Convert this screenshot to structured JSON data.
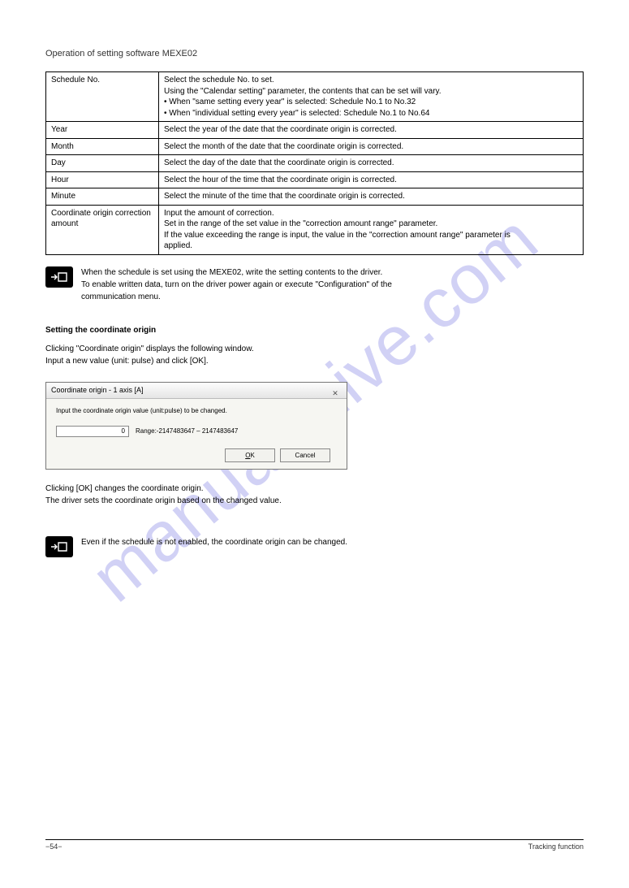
{
  "headerLine": "Operation of setting software MEXE02",
  "table": {
    "rows": [
      {
        "col1": "Schedule No.",
        "col2": "Select the schedule No. to set.\nUsing the \"Calendar setting\" parameter, the contents that can be set will vary.\n• When \"same setting every year\" is selected: Schedule No.1 to No.32\n• When \"individual setting every year\" is selected: Schedule No.1 to No.64"
      },
      {
        "col1": "Year",
        "col2": "Select the year of the date that the coordinate origin is corrected."
      },
      {
        "col1": "Month",
        "col2": "Select the month of the date that the coordinate origin is corrected."
      },
      {
        "col1": "Day",
        "col2": "Select the day of the date that the coordinate origin is corrected."
      },
      {
        "col1": "Hour",
        "col2": "Select the hour of the time that the coordinate origin is corrected."
      },
      {
        "col1": "Minute",
        "col2": "Select the minute of the time that the coordinate origin is corrected."
      },
      {
        "col1": "Coordinate origin correction amount",
        "col2": "Input the amount of correction.\nSet in the range of the set value in the \"correction amount range\" parameter.\nIf the value exceeding the range is input, the value in the \"correction amount range\" parameter is\napplied."
      }
    ]
  },
  "note1": "When the schedule is set using the MEXE02, write the setting contents to the driver.\nTo enable written data, turn on the driver power again or execute \"Configuration\" of the\ncommunication menu.",
  "sectionHeader": "Setting the coordinate origin",
  "sectionIntroA": "Clicking \"Coordinate origin\" displays the following window.",
  "sectionIntroB": "Input a new value (unit: pulse) and click [OK].",
  "dialog": {
    "title": "Coordinate origin - 1 axis [A]",
    "prompt": "Input the coordinate origin value (unit:pulse) to be changed.",
    "value": "0",
    "range": "Range:-2147483647 – 2147483647",
    "ok": "OK",
    "okAccel": "O",
    "okRest": "K",
    "cancel": "Cancel"
  },
  "afterDialog": "Clicking [OK] changes the coordinate origin.\nThe driver sets the coordinate origin based on the changed value.",
  "note2": "Even if the schedule is not enabled, the coordinate origin can be changed.",
  "footerLeft": "−54−",
  "footerRight": "Tracking function"
}
